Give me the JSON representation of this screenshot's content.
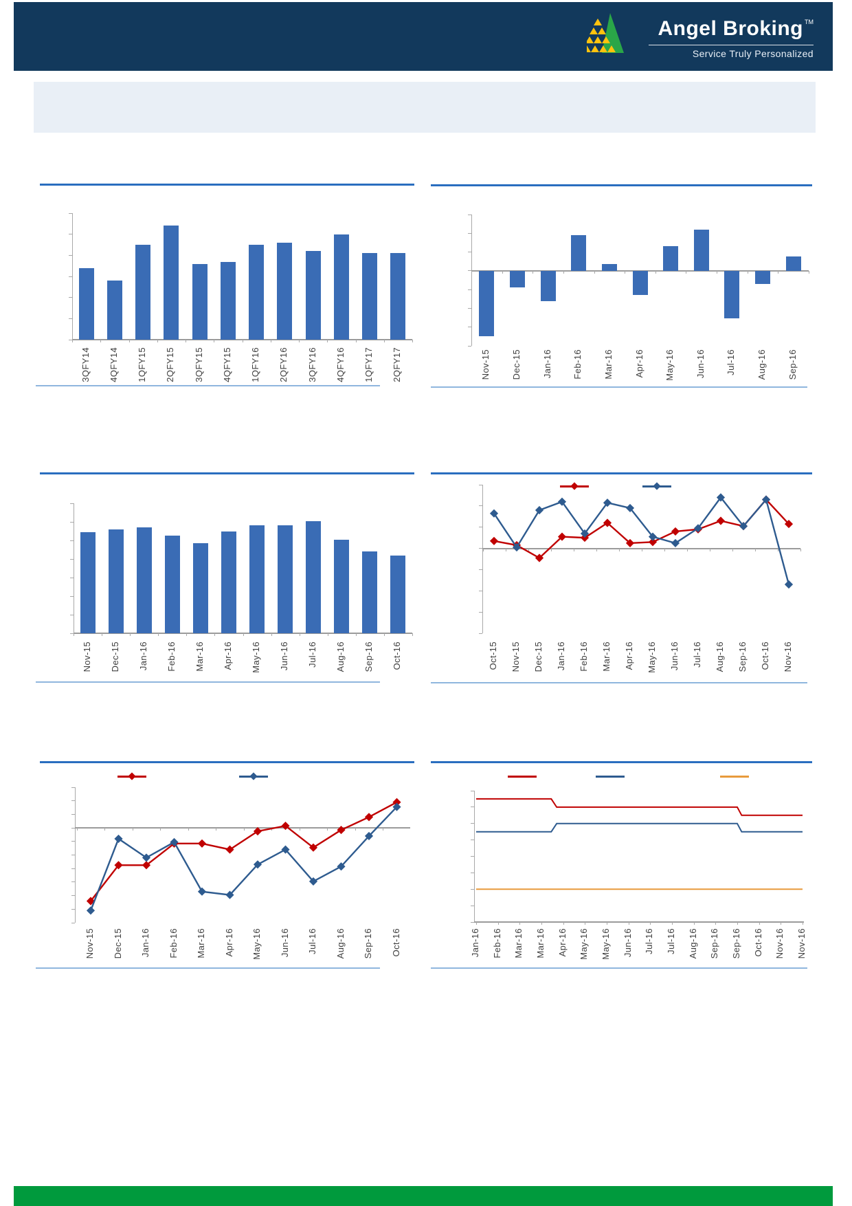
{
  "header": {
    "brand": "Angel Broking",
    "tm": "TM",
    "tagline": "Service Truly Personalized"
  },
  "banner": {
    "text": ""
  },
  "colors": {
    "header_navy": "#12395c",
    "banner_bg": "#e9eff6",
    "bar_blue": "#3a6cb5",
    "line_blue": "#2e5b8f",
    "line_red": "#c00000",
    "line_orange": "#e89a3c",
    "title_rule_blue": "#2a6ebf",
    "bottom_rule_blue": "#8fb6de",
    "axis_gray": "#a8a8a8",
    "footer_green": "#009a3d",
    "logo_green": "#2aa648",
    "logo_yellow": "#ffc20e"
  },
  "chart_data": [
    {
      "type": "bar",
      "title": "",
      "xlabel": "",
      "ylabel": "",
      "y_axis_labels_visible": false,
      "categories": [
        "3QFY14",
        "4QFY14",
        "1QFY15",
        "2QFY15",
        "3QFY15",
        "4QFY15",
        "1QFY16",
        "2QFY16",
        "3QFY16",
        "4QFY16",
        "1QFY17",
        "2QFY17"
      ],
      "values": [
        3.4,
        2.8,
        4.5,
        5.4,
        3.6,
        3.7,
        4.5,
        4.6,
        4.2,
        5.0,
        4.1,
        4.1
      ],
      "ylim": [
        0,
        6
      ],
      "ytick_step": 1,
      "grid": false
    },
    {
      "type": "bar",
      "title": "",
      "xlabel": "",
      "ylabel": "",
      "y_axis_labels_visible": false,
      "categories": [
        "Nov-15",
        "Dec-15",
        "Jan-16",
        "Feb-16",
        "Mar-16",
        "Apr-16",
        "May-16",
        "Jun-16",
        "Jul-16",
        "Aug-16",
        "Sep-16"
      ],
      "values": [
        -3.5,
        -0.9,
        -1.6,
        1.9,
        0.35,
        -1.3,
        1.3,
        2.2,
        -2.55,
        -0.7,
        0.75
      ],
      "ylim": [
        -4,
        3
      ],
      "ytick_step": 1,
      "grid": false
    },
    {
      "type": "bar",
      "title": "",
      "xlabel": "",
      "ylabel": "",
      "y_axis_labels_visible": false,
      "categories": [
        "Nov-15",
        "Dec-15",
        "Jan-16",
        "Feb-16",
        "Mar-16",
        "Apr-16",
        "May-16",
        "Jun-16",
        "Jul-16",
        "Aug-16",
        "Sep-16",
        "Oct-16"
      ],
      "values": [
        5.45,
        5.6,
        5.7,
        5.25,
        4.85,
        5.5,
        5.8,
        5.8,
        6.05,
        5.05,
        4.4,
        4.2
      ],
      "ylim": [
        0,
        7
      ],
      "ytick_step": 1,
      "grid": false
    },
    {
      "type": "line",
      "title": "",
      "xlabel": "",
      "ylabel": "",
      "y_axis_labels_visible": false,
      "marker": "diamond",
      "legend_position": "top",
      "categories": [
        "Oct-15",
        "Nov-15",
        "Dec-15",
        "Jan-16",
        "Feb-16",
        "Mar-16",
        "Apr-16",
        "May-16",
        "Jun-16",
        "Jul-16",
        "Aug-16",
        "Sep-16",
        "Oct-16",
        "Nov-16"
      ],
      "series": [
        {
          "name": "",
          "color_key": "line_red",
          "values": [
            0.35,
            0.15,
            -0.45,
            0.55,
            0.5,
            1.2,
            0.25,
            0.3,
            0.8,
            0.9,
            1.3,
            1.05,
            2.3,
            1.15
          ]
        },
        {
          "name": "",
          "color_key": "line_blue",
          "values": [
            1.65,
            0.05,
            1.8,
            2.2,
            0.7,
            2.15,
            1.9,
            0.55,
            0.25,
            0.95,
            2.4,
            1.05,
            2.3,
            -1.7
          ]
        }
      ],
      "ylim": [
        -4,
        3
      ],
      "ytick_step": 1,
      "grid": false
    },
    {
      "type": "line",
      "title": "",
      "xlabel": "",
      "ylabel": "",
      "y_axis_labels_visible": false,
      "marker": "diamond",
      "legend_position": "top",
      "categories": [
        "Nov-15",
        "Dec-15",
        "Jan-16",
        "Feb-16",
        "Mar-16",
        "Apr-16",
        "May-16",
        "Jun-16",
        "Jul-16",
        "Aug-16",
        "Sep-16",
        "Oct-16"
      ],
      "series": [
        {
          "name": "",
          "color_key": "line_red",
          "values": [
            -5.4,
            -2.75,
            -2.75,
            -1.15,
            -1.15,
            -1.6,
            -0.25,
            0.15,
            -1.45,
            -0.15,
            0.8,
            1.9
          ]
        },
        {
          "name": "",
          "color_key": "line_blue",
          "values": [
            -6.1,
            -0.8,
            -2.2,
            -1.05,
            -4.7,
            -4.95,
            -2.7,
            -1.6,
            -3.95,
            -2.85,
            -0.6,
            1.55
          ]
        }
      ],
      "ylim": [
        -7,
        3
      ],
      "ytick_step": 1,
      "grid": false
    },
    {
      "type": "step-line",
      "title": "",
      "xlabel": "",
      "ylabel": "",
      "y_axis_labels_visible": false,
      "legend_position": "top",
      "categories": [
        "Jan-16",
        "Feb-16",
        "Mar-16",
        "Mar-16",
        "Apr-16",
        "May-16",
        "May-16",
        "Jun-16",
        "Jul-16",
        "Jul-16",
        "Aug-16",
        "Sep-16",
        "Sep-16",
        "Oct-16",
        "Nov-16",
        "Nov-16"
      ],
      "series": [
        {
          "name": "",
          "color_key": "line_red",
          "segments": [
            {
              "start": 0,
              "end": 3.45,
              "value": 6.75
            },
            {
              "start": 3.7,
              "end": 12.0,
              "value": 6.5
            },
            {
              "start": 12.2,
              "end": 15,
              "value": 6.25
            }
          ]
        },
        {
          "name": "",
          "color_key": "line_blue",
          "segments": [
            {
              "start": 0,
              "end": 3.45,
              "value": 5.75
            },
            {
              "start": 3.7,
              "end": 12.0,
              "value": 6.0
            },
            {
              "start": 12.2,
              "end": 15,
              "value": 5.75
            }
          ]
        },
        {
          "name": "",
          "color_key": "line_orange",
          "segments": [
            {
              "start": 0,
              "end": 15,
              "value": 4.0
            }
          ]
        }
      ],
      "ylim": [
        3,
        7
      ],
      "ytick_step": 0.5,
      "grid": false
    }
  ]
}
